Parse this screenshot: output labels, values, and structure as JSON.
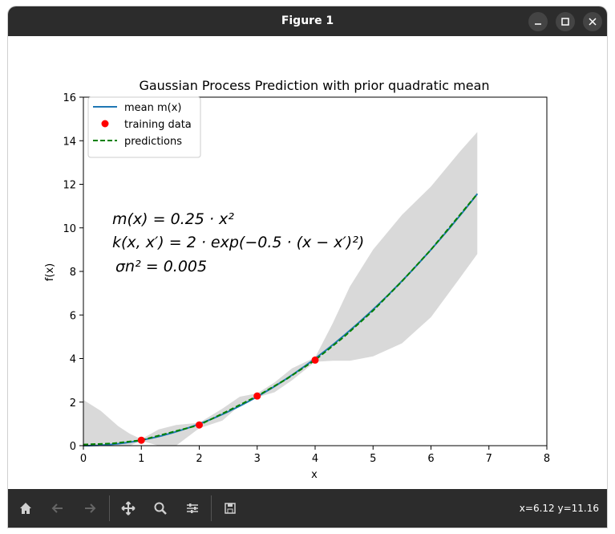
{
  "window": {
    "title": "Figure 1",
    "minimize_icon": "minimize-icon",
    "maximize_icon": "maximize-icon",
    "close_icon": "close-icon"
  },
  "toolbar": {
    "buttons": [
      "home-icon",
      "back-icon",
      "forward-icon",
      "pan-icon",
      "zoom-icon",
      "configure-icon",
      "save-icon"
    ],
    "coords": "x=6.12 y=11.16"
  },
  "colors": {
    "mean": "#1f77b4",
    "training": "#ff0000",
    "predictions": "#008000",
    "band": "#d9d9d9"
  },
  "chart_data": {
    "type": "line",
    "title": "Gaussian Process Prediction with prior quadratic mean",
    "xlabel": "x",
    "ylabel": "f(x)",
    "xlim": [
      0,
      8
    ],
    "ylim": [
      0,
      16
    ],
    "xticks": [
      "0",
      "1",
      "2",
      "3",
      "4",
      "5",
      "6",
      "7",
      "8"
    ],
    "yticks": [
      "0",
      "2",
      "4",
      "6",
      "8",
      "10",
      "12",
      "14",
      "16"
    ],
    "legend_position": "top-left",
    "legend": [
      "mean m(x)",
      "training data",
      "predictions"
    ],
    "annotations": [
      "m(x) = 0.25 · x²",
      "k(x, x′) = 2 · exp(−0.5 · (x − x′)²)",
      "σn² = 0.005"
    ],
    "mean_curve": {
      "name": "mean m(x)",
      "formula": "0.25*x^2",
      "x_range": [
        0,
        6.8
      ]
    },
    "training_data": {
      "name": "training data",
      "x": [
        1,
        2,
        3,
        4
      ],
      "y": [
        0.25,
        0.95,
        2.28,
        3.93
      ]
    },
    "predictions": {
      "name": "predictions",
      "x": [
        0,
        0.5,
        1,
        1.5,
        2,
        2.5,
        3,
        3.5,
        4,
        4.5,
        5,
        5.5,
        6,
        6.5,
        6.8
      ],
      "y": [
        0.05,
        0.1,
        0.25,
        0.6,
        0.95,
        1.6,
        2.28,
        3.05,
        3.93,
        5.0,
        6.2,
        7.55,
        9.0,
        10.6,
        11.56
      ]
    },
    "confidence_band": {
      "x": [
        0,
        0.3,
        0.6,
        0.8,
        1,
        1.3,
        1.6,
        2,
        2.4,
        2.7,
        3,
        3.3,
        3.6,
        4,
        4.3,
        4.6,
        5,
        5.5,
        6,
        6.5,
        6.8
      ],
      "upper": [
        2.1,
        1.6,
        0.9,
        0.55,
        0.3,
        0.75,
        0.95,
        1.05,
        1.7,
        2.25,
        2.4,
        2.9,
        3.55,
        4.05,
        5.6,
        7.3,
        9.0,
        10.6,
        11.9,
        13.5,
        14.4
      ],
      "lower": [
        0.0,
        0.0,
        0.0,
        0.0,
        0.22,
        0.0,
        0.0,
        0.8,
        1.15,
        1.85,
        2.22,
        2.45,
        3.0,
        3.85,
        3.9,
        3.9,
        4.1,
        4.7,
        5.9,
        7.7,
        8.8
      ]
    }
  }
}
